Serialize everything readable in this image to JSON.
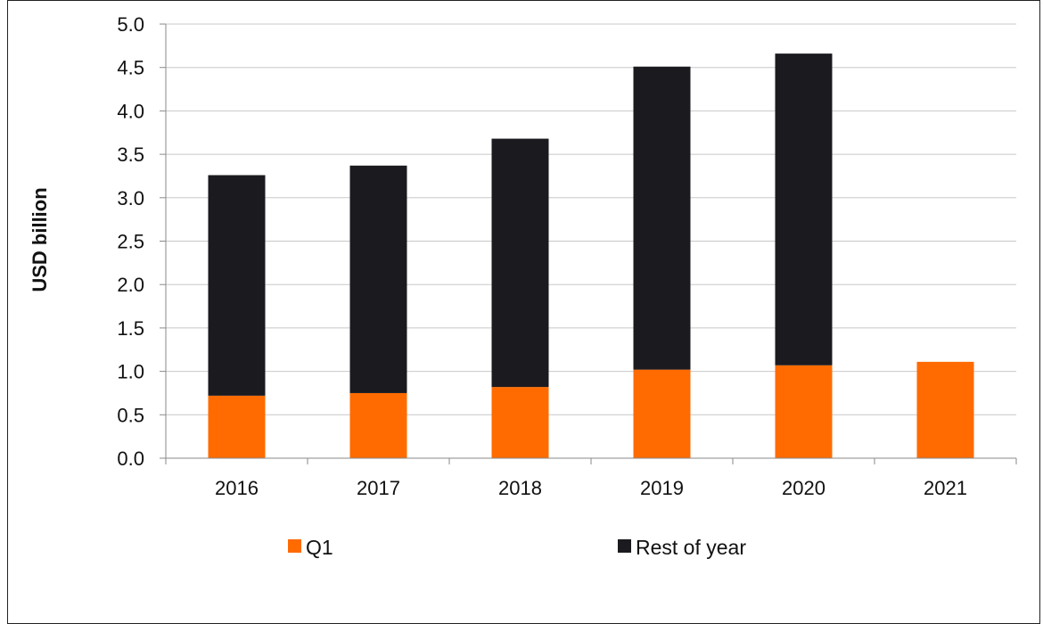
{
  "chart_data": {
    "type": "bar",
    "stacked": true,
    "categories": [
      "2016",
      "2017",
      "2018",
      "2019",
      "2020",
      "2021"
    ],
    "series": [
      {
        "name": "Q1",
        "color": "#ff6b00",
        "values": [
          0.72,
          0.75,
          0.82,
          1.02,
          1.07,
          1.11
        ]
      },
      {
        "name": "Rest of year",
        "color": "#1b1a1f",
        "values": [
          2.54,
          2.62,
          2.86,
          3.49,
          3.59,
          0
        ]
      }
    ],
    "ylabel": "USD billion",
    "xlabel": "",
    "ylim": [
      0,
      5.0
    ],
    "yticks": [
      "0.0",
      "0.5",
      "1.0",
      "1.5",
      "2.0",
      "2.5",
      "3.0",
      "3.5",
      "4.0",
      "4.5",
      "5.0"
    ],
    "grid": true,
    "legend_position": "bottom"
  }
}
